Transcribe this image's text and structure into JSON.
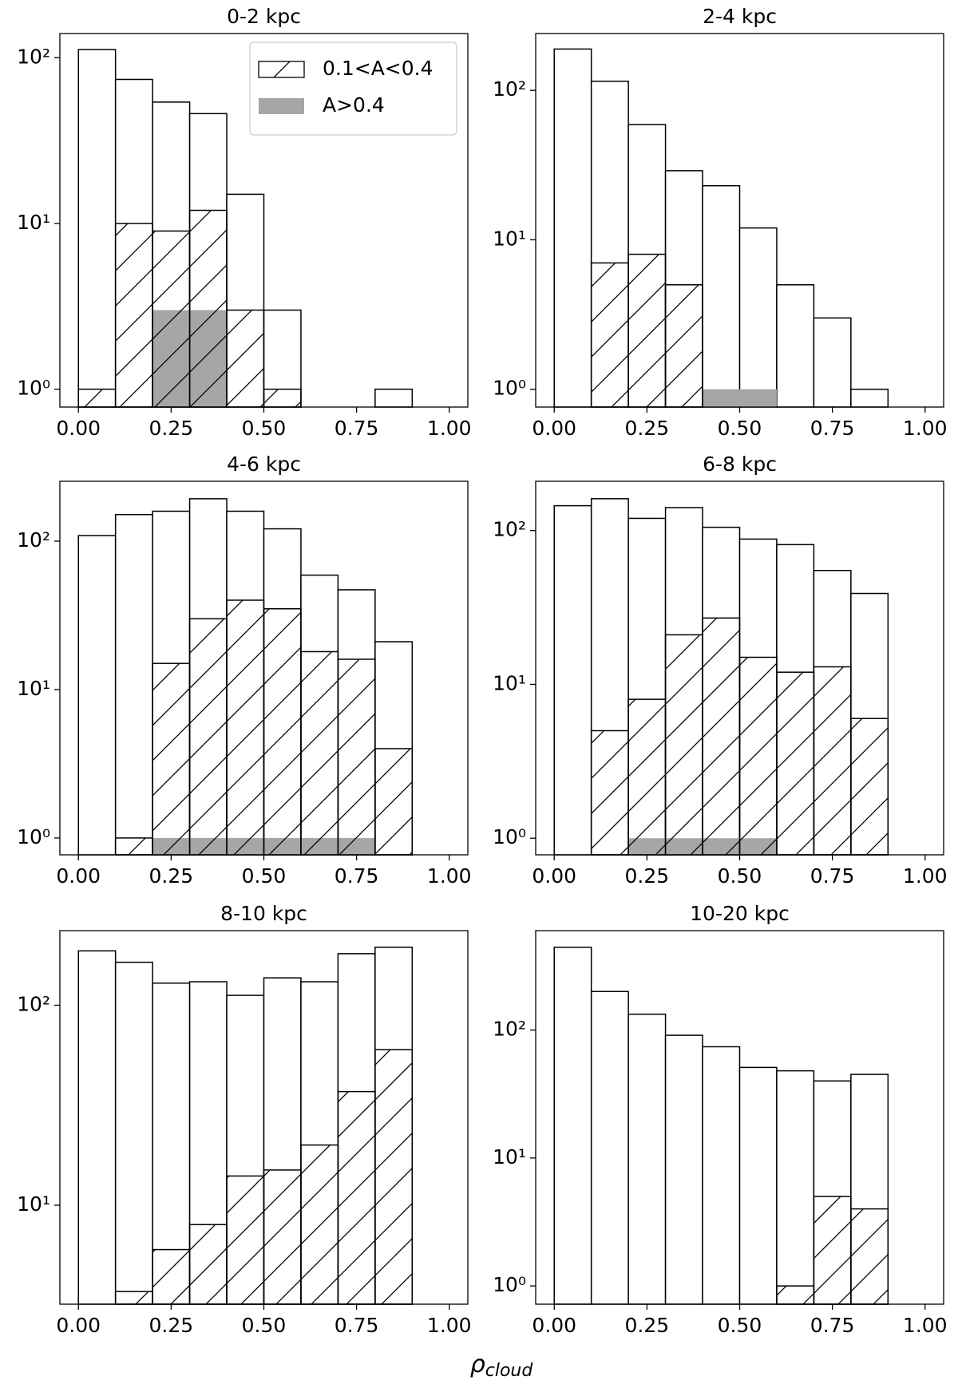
{
  "chart_data": [
    {
      "type": "histogram",
      "title": "0-2 kpc",
      "bins": [
        0,
        0.1,
        0.2,
        0.3,
        0.4,
        0.5,
        0.6,
        0.7,
        0.8,
        0.9,
        1.0
      ],
      "series": [
        {
          "color": "#ffffff",
          "edgecolor": "#000000",
          "values": [
            112,
            74,
            54,
            46,
            15,
            3,
            0,
            0,
            1,
            0
          ]
        },
        {
          "name": "0.1<A<0.4",
          "color": "none",
          "hatch": "/",
          "edgecolor": "#000000",
          "values": [
            1,
            10,
            9,
            12,
            3,
            1,
            0,
            0,
            0,
            0
          ]
        },
        {
          "name": "A>0.4",
          "color": "#a6a6a6",
          "edgecolor": "none",
          "values": [
            0,
            0,
            3,
            3,
            0,
            0,
            0,
            0,
            0,
            0
          ]
        }
      ],
      "log_y": true,
      "ylim": [
        0.78,
        140
      ],
      "yticks": [
        {
          "value": 1,
          "label": "10⁰"
        },
        {
          "value": 10,
          "label": "10¹"
        },
        {
          "value": 100,
          "label": "10²"
        }
      ],
      "xlim": [
        -0.05,
        1.05
      ],
      "xticks": [
        {
          "value": 0,
          "label": "0.00"
        },
        0.25,
        {
          "value": 0.5,
          "label": "0.50"
        },
        0.75,
        {
          "value": 1,
          "label": "1.00"
        }
      ],
      "legend": "upper right"
    },
    {
      "type": "histogram",
      "title": "2-4 kpc",
      "bins": [
        0,
        0.1,
        0.2,
        0.3,
        0.4,
        0.5,
        0.6,
        0.7,
        0.8,
        0.9,
        1.0
      ],
      "series": [
        {
          "color": "#ffffff",
          "edgecolor": "#000000",
          "values": [
            189,
            115,
            59,
            29,
            23,
            12,
            5,
            3,
            1,
            0
          ]
        },
        {
          "color": "none",
          "hatch": "/",
          "edgecolor": "#000000",
          "values": [
            0,
            7,
            8,
            5,
            0,
            0,
            0,
            0,
            0,
            0
          ]
        },
        {
          "color": "#a6a6a6",
          "edgecolor": "none",
          "values": [
            0,
            0,
            0,
            0,
            1,
            1,
            0,
            0,
            0,
            0
          ]
        }
      ],
      "log_y": true,
      "ylim": [
        0.76,
        240
      ],
      "yticks": [
        {
          "value": 1,
          "label": "10⁰"
        },
        {
          "value": 10,
          "label": "10¹"
        },
        {
          "value": 100,
          "label": "10²"
        }
      ],
      "xlim": [
        -0.05,
        1.05
      ],
      "xticks": [
        {
          "value": 0,
          "label": "0.00"
        },
        0.25,
        {
          "value": 0.5,
          "label": "0.50"
        },
        0.75,
        {
          "value": 1,
          "label": "1.00"
        }
      ]
    },
    {
      "type": "histogram",
      "title": "4-6 kpc",
      "bins": [
        0,
        0.1,
        0.2,
        0.3,
        0.4,
        0.5,
        0.6,
        0.7,
        0.8,
        0.9,
        1.0
      ],
      "series": [
        {
          "color": "#ffffff",
          "edgecolor": "#000000",
          "values": [
            109,
            151,
            159,
            193,
            159,
            121,
            59,
            47,
            21,
            0
          ]
        },
        {
          "color": "none",
          "hatch": "/",
          "edgecolor": "#000000",
          "values": [
            0,
            1,
            15,
            30,
            40,
            35,
            18,
            16,
            4,
            0
          ]
        },
        {
          "color": "#a6a6a6",
          "edgecolor": "none",
          "values": [
            0,
            0,
            1,
            1,
            1,
            1,
            1,
            1,
            0,
            0
          ]
        }
      ],
      "log_y": true,
      "ylim": [
        0.77,
        253
      ],
      "yticks": [
        {
          "value": 1,
          "label": "10⁰"
        },
        {
          "value": 10,
          "label": "10¹"
        },
        {
          "value": 100,
          "label": "10²"
        }
      ],
      "xlim": [
        -0.05,
        1.05
      ],
      "xticks": [
        {
          "value": 0,
          "label": "0.00"
        },
        0.25,
        {
          "value": 0.5,
          "label": "0.50"
        },
        0.75,
        {
          "value": 1,
          "label": "1.00"
        }
      ]
    },
    {
      "type": "histogram",
      "title": "6-8 kpc",
      "bins": [
        0,
        0.1,
        0.2,
        0.3,
        0.4,
        0.5,
        0.6,
        0.7,
        0.8,
        0.9,
        1.0
      ],
      "series": [
        {
          "color": "#ffffff",
          "edgecolor": "#000000",
          "values": [
            145,
            161,
            120,
            141,
            105,
            88,
            81,
            55,
            39,
            0
          ]
        },
        {
          "color": "none",
          "hatch": "/",
          "edgecolor": "#000000",
          "values": [
            0,
            5,
            8,
            21,
            27,
            15,
            12,
            13,
            6,
            0
          ]
        },
        {
          "color": "#a6a6a6",
          "edgecolor": "none",
          "values": [
            0,
            0,
            1,
            1,
            1,
            1,
            0,
            0,
            0,
            0
          ]
        }
      ],
      "log_y": true,
      "ylim": [
        0.78,
        209
      ],
      "yticks": [
        {
          "value": 1,
          "label": "10⁰"
        },
        {
          "value": 10,
          "label": "10¹"
        },
        {
          "value": 100,
          "label": "10²"
        }
      ],
      "xlim": [
        -0.05,
        1.05
      ],
      "xticks": [
        {
          "value": 0,
          "label": "0.00"
        },
        0.25,
        {
          "value": 0.5,
          "label": "0.50"
        },
        0.75,
        {
          "value": 1,
          "label": "1.00"
        }
      ]
    },
    {
      "type": "histogram",
      "title": "8-10 kpc",
      "bins": [
        0,
        0.1,
        0.2,
        0.3,
        0.4,
        0.5,
        0.6,
        0.7,
        0.8,
        0.9,
        1.0
      ],
      "series": [
        {
          "color": "#ffffff",
          "edgecolor": "#000000",
          "values": [
            187,
            164,
            129,
            131,
            112,
            137,
            131,
            181,
            195,
            0
          ]
        },
        {
          "color": "none",
          "hatch": "/",
          "edgecolor": "#000000",
          "values": [
            0,
            3.7,
            6,
            8,
            14,
            15,
            20,
            37,
            60,
            0
          ]
        },
        {
          "color": "#a6a6a6",
          "edgecolor": "none",
          "values": [
            0,
            0,
            0,
            0,
            0,
            0,
            0,
            0,
            0,
            0
          ]
        }
      ],
      "log_y": true,
      "ylim": [
        3.2,
        236
      ],
      "yticks": [
        {
          "value": 10,
          "label": "10¹"
        },
        {
          "value": 100,
          "label": "10²"
        }
      ],
      "xlim": [
        -0.05,
        1.05
      ],
      "xticks": [
        {
          "value": 0,
          "label": "0.00"
        },
        0.25,
        {
          "value": 0.5,
          "label": "0.50"
        },
        0.75,
        {
          "value": 1,
          "label": "1.00"
        }
      ]
    },
    {
      "type": "histogram",
      "title": "10-20 kpc",
      "bins": [
        0,
        0.1,
        0.2,
        0.3,
        0.4,
        0.5,
        0.6,
        0.7,
        0.8,
        0.9,
        1.0
      ],
      "series": [
        {
          "color": "#ffffff",
          "edgecolor": "#000000",
          "values": [
            443,
            200,
            133,
            91,
            74,
            51,
            48,
            40,
            45,
            0
          ]
        },
        {
          "color": "none",
          "hatch": "/",
          "edgecolor": "#000000",
          "values": [
            0,
            0,
            0,
            0,
            0,
            0,
            1,
            5,
            4,
            0
          ]
        },
        {
          "color": "#a6a6a6",
          "edgecolor": "none",
          "values": [
            0,
            0,
            0,
            0,
            0,
            0,
            0,
            0,
            0,
            0
          ]
        }
      ],
      "log_y": true,
      "ylim": [
        0.72,
        598
      ],
      "yticks": [
        {
          "value": 1,
          "label": "10⁰"
        },
        {
          "value": 10,
          "label": "10¹"
        },
        {
          "value": 100,
          "label": "10²"
        }
      ],
      "xlim": [
        -0.05,
        1.05
      ],
      "xticks": [
        {
          "value": 0,
          "label": "0.00"
        },
        0.25,
        {
          "value": 0.5,
          "label": "0.50"
        },
        0.75,
        {
          "value": 1,
          "label": "1.00"
        }
      ]
    }
  ],
  "xlabel": {
    "symbol": "ρ",
    "subscript": "cloud"
  }
}
